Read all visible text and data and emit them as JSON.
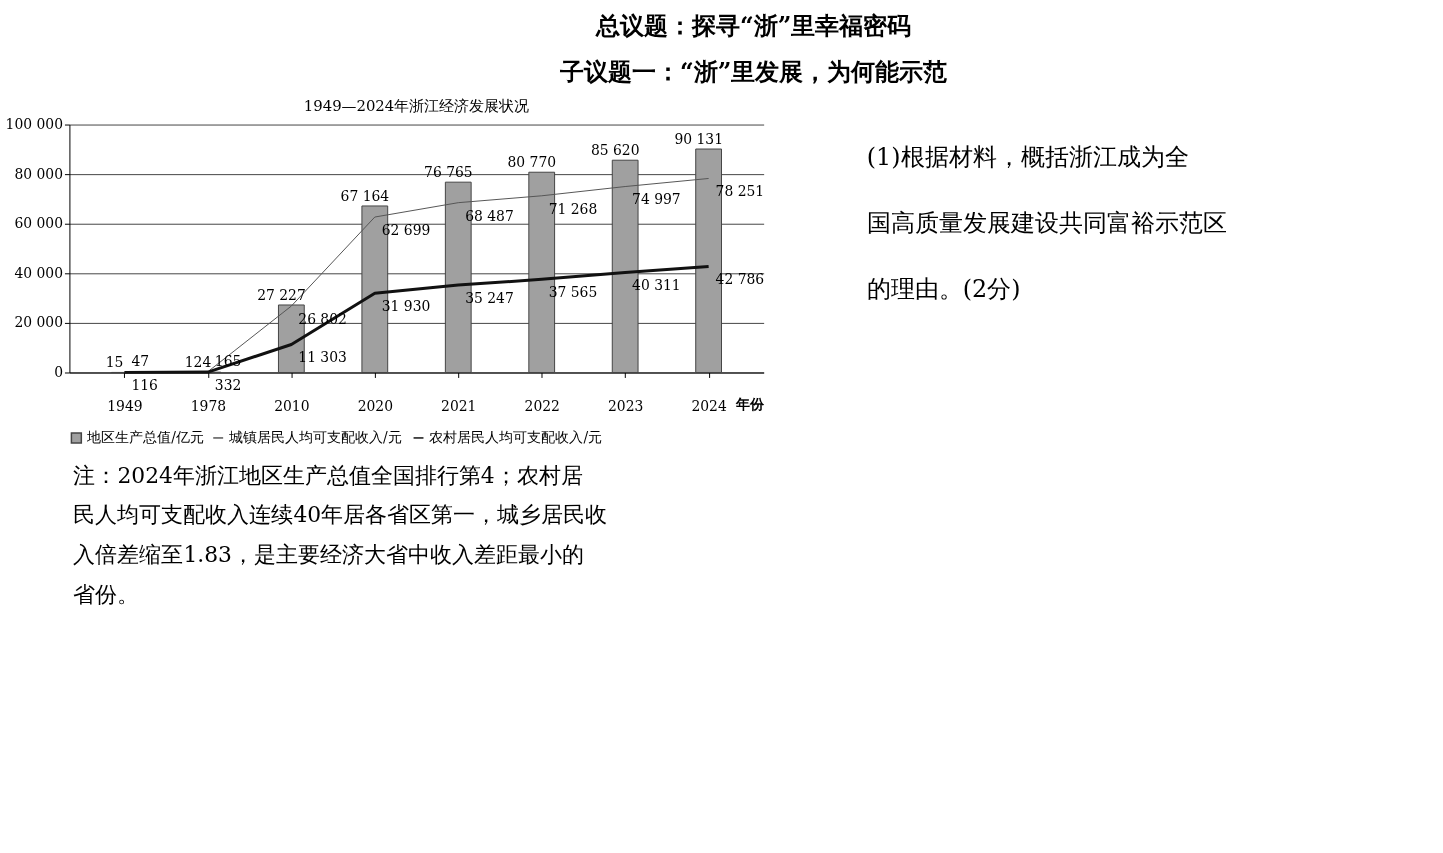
{
  "chart_data": {
    "type": "bar",
    "title": "1949—2024年浙江经济发展状况",
    "xlabel": "年份",
    "categories": [
      "1949",
      "1978",
      "2010",
      "2020",
      "2021",
      "2022",
      "2023",
      "2024"
    ],
    "series": [
      {
        "name": "地区生产总值/亿元",
        "color": "#a0a0a0",
        "values": [
          15,
          124,
          27227,
          67164,
          76765,
          80770,
          85620,
          90131
        ],
        "value_labels": [
          "15",
          "124",
          "27 227",
          "67 164",
          "76 765",
          "80 770",
          "85 620",
          "90 131"
        ]
      },
      {
        "name": "城镇居民人均可支配收入/元",
        "type": "line",
        "color": "#555555",
        "values": [
          116,
          332,
          26802,
          62699,
          68487,
          71268,
          74997,
          78251
        ],
        "value_labels": [
          "116",
          "332",
          "26 802",
          "62 699",
          "68 487",
          "71 268",
          "74 997",
          "78 251"
        ]
      },
      {
        "name": "农村居民人均可支配收入/元",
        "type": "line",
        "color": "#111111",
        "values": [
          47,
          165,
          11303,
          31930,
          35247,
          37565,
          40311,
          42786
        ],
        "value_labels": [
          "47",
          "165",
          "11 303",
          "31 930",
          "35 247",
          "37 565",
          "40 311",
          "42 786"
        ]
      }
    ],
    "ylim": [
      0,
      100000
    ],
    "yticks": [
      {
        "value": 0,
        "label": "0"
      },
      {
        "value": 20000,
        "label": "20 000"
      },
      {
        "value": 40000,
        "label": "40 000"
      },
      {
        "value": 60000,
        "label": "60 000"
      },
      {
        "value": 80000,
        "label": "80 000"
      },
      {
        "value": 100000,
        "label": "100 000"
      }
    ],
    "grid": "y",
    "legend": "bottom",
    "marker": "none",
    "line_style": "solid",
    "annotations": [
      "总议题：探寻“浙”里幸福密码",
      "子议题一：“浙”里发展，为何能示范",
      "注：2024年浙江地区生产总值全国排行第4；农村居民人均可支配收入连续40年居各省区第一，城乡居民收入倍差缩至1.83，是主要经济大省中收入差距最小的省份。",
      "(1)根据材料，概括浙江成为全国高质量发展建设共同富裕示范区的理由。(2分)"
    ]
  }
}
